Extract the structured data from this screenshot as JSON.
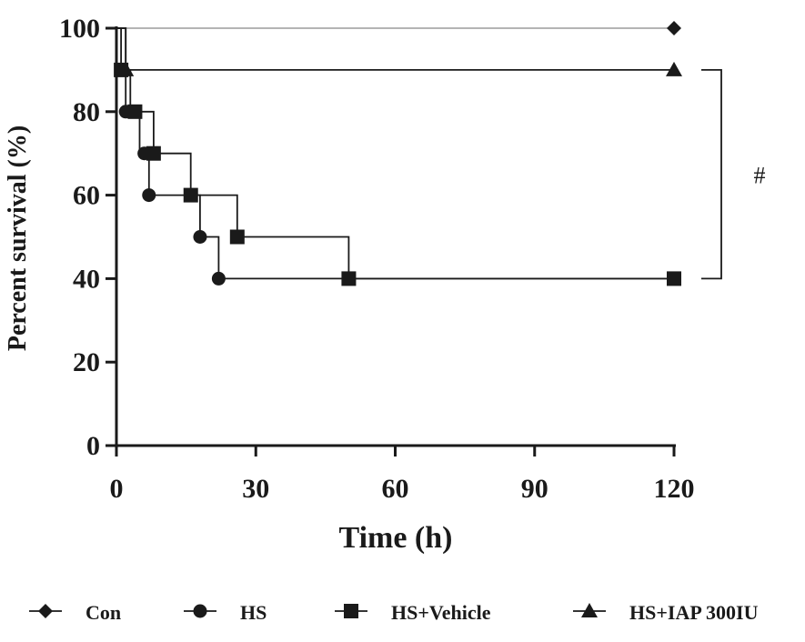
{
  "chart_data": {
    "type": "line",
    "subtype": "kaplan-meier-step",
    "xlabel": "Time (h)",
    "ylabel": "Percent survival (%)",
    "xlim": [
      0,
      120
    ],
    "ylim": [
      0,
      100
    ],
    "xticks": [
      0,
      30,
      60,
      90,
      120
    ],
    "yticks": [
      0,
      20,
      40,
      60,
      80,
      100
    ],
    "grid": false,
    "legend_position": "bottom",
    "series": [
      {
        "name": "Con",
        "marker": "diamond",
        "color": "#1a1a1a",
        "line_color": "#aaaaaa",
        "steps": [
          [
            0,
            100
          ],
          [
            120,
            100
          ]
        ],
        "markers": [
          [
            120,
            100
          ]
        ]
      },
      {
        "name": "HS",
        "marker": "circle",
        "color": "#1a1a1a",
        "line_color": "#1a1a1a",
        "steps": [
          [
            0,
            100
          ],
          [
            2,
            100
          ],
          [
            2,
            80
          ],
          [
            5,
            80
          ],
          [
            5,
            70
          ],
          [
            7,
            70
          ],
          [
            7,
            60
          ],
          [
            18,
            60
          ],
          [
            18,
            50
          ],
          [
            22,
            50
          ],
          [
            22,
            40
          ],
          [
            120,
            40
          ]
        ],
        "markers": [
          [
            2,
            80
          ],
          [
            6,
            70
          ],
          [
            7,
            60
          ],
          [
            18,
            50
          ],
          [
            22,
            40
          ]
        ]
      },
      {
        "name": "HS+Vehicle",
        "marker": "square",
        "color": "#1a1a1a",
        "line_color": "#1a1a1a",
        "steps": [
          [
            0,
            100
          ],
          [
            1,
            100
          ],
          [
            1,
            90
          ],
          [
            3,
            90
          ],
          [
            3,
            80
          ],
          [
            8,
            80
          ],
          [
            8,
            70
          ],
          [
            16,
            70
          ],
          [
            16,
            60
          ],
          [
            26,
            60
          ],
          [
            26,
            50
          ],
          [
            50,
            50
          ],
          [
            50,
            40
          ],
          [
            120,
            40
          ]
        ],
        "markers": [
          [
            1,
            90
          ],
          [
            4,
            80
          ],
          [
            8,
            70
          ],
          [
            16,
            60
          ],
          [
            26,
            50
          ],
          [
            50,
            40
          ],
          [
            120,
            40
          ]
        ]
      },
      {
        "name": "HS+IAP 300IU",
        "marker": "triangle",
        "color": "#1a1a1a",
        "line_color": "#1a1a1a",
        "steps": [
          [
            0,
            100
          ],
          [
            2,
            100
          ],
          [
            2,
            90
          ],
          [
            120,
            90
          ]
        ],
        "markers": [
          [
            2,
            90
          ],
          [
            120,
            90
          ]
        ]
      }
    ],
    "annotations": [
      {
        "text": "#",
        "type": "bracket",
        "from_y": 90,
        "to_y": 40
      }
    ]
  }
}
